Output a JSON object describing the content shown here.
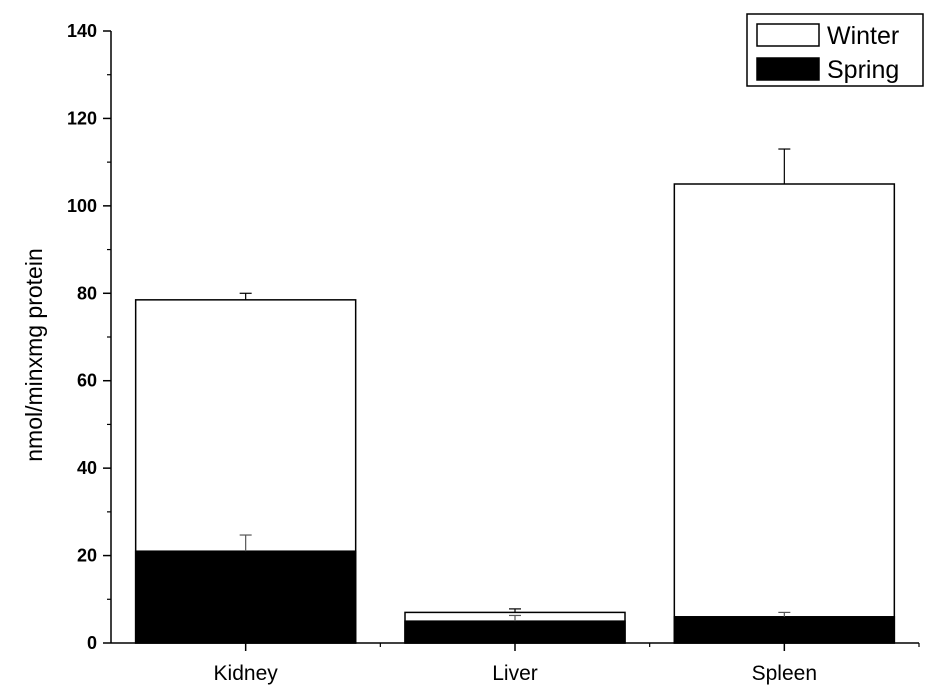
{
  "chart_data": {
    "type": "bar",
    "overlaid": true,
    "categories": [
      "Kidney",
      "Liver",
      "Spleen"
    ],
    "series": [
      {
        "name": "Winter",
        "color": "#ffffff",
        "values": [
          78.5,
          7.0,
          105.0
        ],
        "errors": [
          1.5,
          0.8,
          8.0
        ]
      },
      {
        "name": "Spring",
        "color": "#000000",
        "values": [
          21.0,
          5.0,
          6.0
        ],
        "errors": [
          3.7,
          1.3,
          1.0
        ]
      }
    ],
    "title": "",
    "xlabel": "",
    "ylabel": "nmol/minxmg protein",
    "ylim": [
      0,
      140
    ],
    "yticks": [
      0,
      20,
      40,
      60,
      80,
      100,
      120,
      140
    ],
    "legend_position": "top-right",
    "grid": false
  }
}
